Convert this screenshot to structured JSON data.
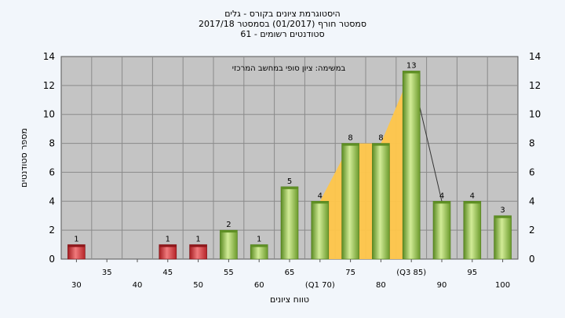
{
  "chart_data": {
    "type": "bar",
    "title_lines": [
      "היסטוגרמת ציונים בקורס - גלים",
      "2017/18  סמסטר חורף  (01/2017)  בסמסטר",
      "61 - סטודנטים רשומים"
    ],
    "annotation": "במשימה: ציון סופי במחשב המרכזי",
    "xlabel": "טווח ציונים",
    "ylabel": "מספר סטודנטים",
    "ylim": [
      0,
      14
    ],
    "yticks": [
      0,
      2,
      4,
      6,
      8,
      10,
      12,
      14
    ],
    "grid": true,
    "categories": [
      "30",
      "35",
      "40",
      "45",
      "50",
      "55",
      "60",
      "65",
      "70",
      "75",
      "80",
      "85",
      "90",
      "95",
      "100"
    ],
    "x_tick_labels": [
      "30",
      "35",
      "40",
      "45",
      "50",
      "55",
      "60",
      "65",
      "(Q1 70)",
      "75",
      "80",
      "(Q3 85)",
      "90",
      "95",
      "100"
    ],
    "values": [
      1,
      0,
      0,
      1,
      1,
      2,
      1,
      5,
      4,
      8,
      8,
      13,
      4,
      4,
      3
    ],
    "data_labels": [
      "1",
      "",
      "",
      "1",
      "1",
      "2",
      "1",
      "5",
      "4",
      "8",
      "8",
      "13",
      "4",
      "4",
      "3"
    ],
    "bar_colors": [
      "red",
      "",
      "",
      "red",
      "red",
      "green",
      "green",
      "green",
      "green",
      "green",
      "green",
      "green",
      "green",
      "green",
      "green"
    ],
    "highlight_band": {
      "from": "70",
      "to": "85",
      "color": "#ffc64a"
    },
    "colors": {
      "plot_background": "#c4c4c4",
      "page_background": "#f2f6fb",
      "failing_bar": "#d62f34",
      "passing_bar": "#8fc049",
      "highlight": "#ffc64a"
    }
  }
}
